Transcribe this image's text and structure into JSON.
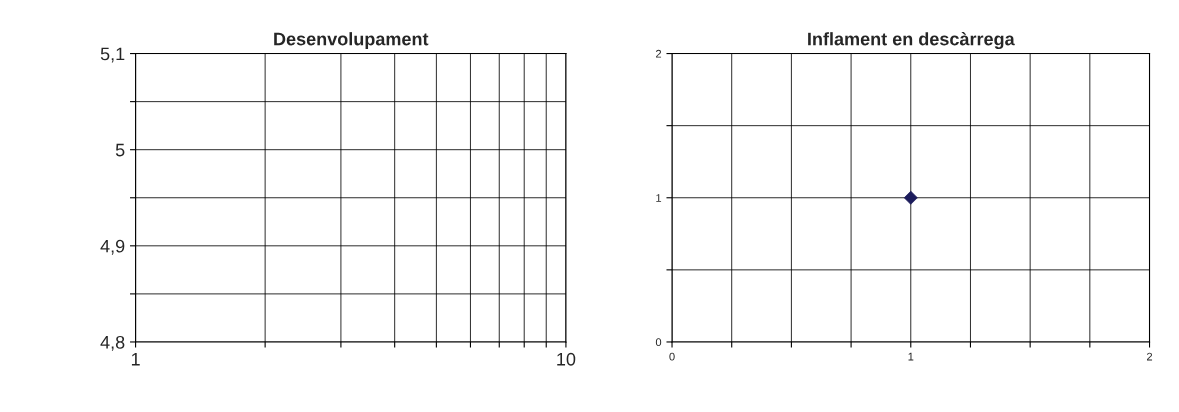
{
  "chart_data": [
    {
      "type": "scatter",
      "title": "Desenvolupament",
      "log": "x",
      "xlim": [
        1,
        10
      ],
      "xticks": [
        1,
        {
          "value": 2,
          "label": null
        },
        {
          "value": 3,
          "label": null
        },
        {
          "value": 4,
          "label": null
        },
        {
          "value": 5,
          "label": null
        },
        {
          "value": 6,
          "label": null
        },
        {
          "value": 7,
          "label": null
        },
        {
          "value": 8,
          "label": null
        },
        {
          "value": 9,
          "label": null
        },
        10
      ],
      "ylim": [
        4.8,
        5.1
      ],
      "yticks": [
        {
          "value": 4.8,
          "label": "4,8"
        },
        {
          "value": 4.85,
          "label": null
        },
        {
          "value": 4.9,
          "label": "4,9"
        },
        {
          "value": 4.95,
          "label": null
        },
        {
          "value": 5,
          "label": "5"
        },
        {
          "value": 5.05,
          "label": null
        },
        {
          "value": 5.1,
          "label": "5,1"
        }
      ],
      "grid": true
    },
    {
      "type": "scatter",
      "title": "Inflament en descàrrega",
      "x": [
        1
      ],
      "values": [
        1
      ],
      "color": "#1c1c5c",
      "marker": "diamond",
      "xlim": [
        0,
        2
      ],
      "xticks": [
        0,
        {
          "value": 0.25,
          "label": null
        },
        {
          "value": 0.5,
          "label": null
        },
        {
          "value": 0.75,
          "label": null
        },
        1,
        {
          "value": 1.25,
          "label": null
        },
        {
          "value": 1.5,
          "label": null
        },
        {
          "value": 1.75,
          "label": null
        },
        2
      ],
      "ylim": [
        0,
        2
      ],
      "yticks": [
        0,
        {
          "value": 0.5,
          "label": null
        },
        1,
        {
          "value": 1.5,
          "label": null
        },
        2
      ],
      "grid": true
    }
  ]
}
